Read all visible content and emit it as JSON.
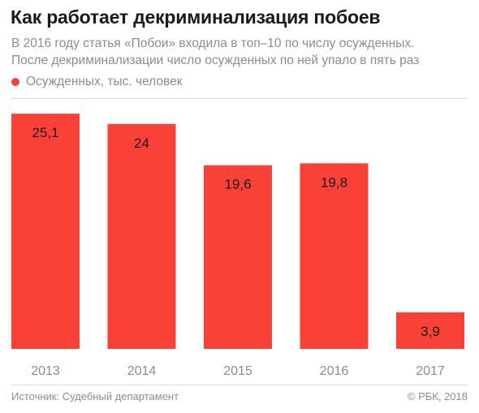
{
  "header": {
    "title": "Как работает декриминализация побоев",
    "subtitle_line1": "В 2016 году статья «Побои» входила в топ–10 по числу осужденных.",
    "subtitle_line2": "После декриминализации число осужденных по ней упало в пять раз"
  },
  "footer": {
    "source": "Источник: Судебный департамент",
    "copyright": "© РБК, 2018"
  },
  "colors": {
    "bar": "#fa4138",
    "tick_text": "#8c8c8c",
    "label_text": "#1a1a1a"
  },
  "chart_data": {
    "type": "bar",
    "title": "Как работает декриминализация побоев",
    "categories": [
      "2013",
      "2014",
      "2015",
      "2016",
      "2017"
    ],
    "series": [
      {
        "name": "Осужденных, тыс. человек",
        "values": [
          25.1,
          24,
          19.6,
          19.8,
          3.9
        ],
        "labels": [
          "25,1",
          "24",
          "19,6",
          "19,8",
          "3,9"
        ]
      }
    ],
    "ylim": [
      0,
      28
    ],
    "grid": false,
    "legend": "top-left",
    "data_labels": "inside-top"
  }
}
